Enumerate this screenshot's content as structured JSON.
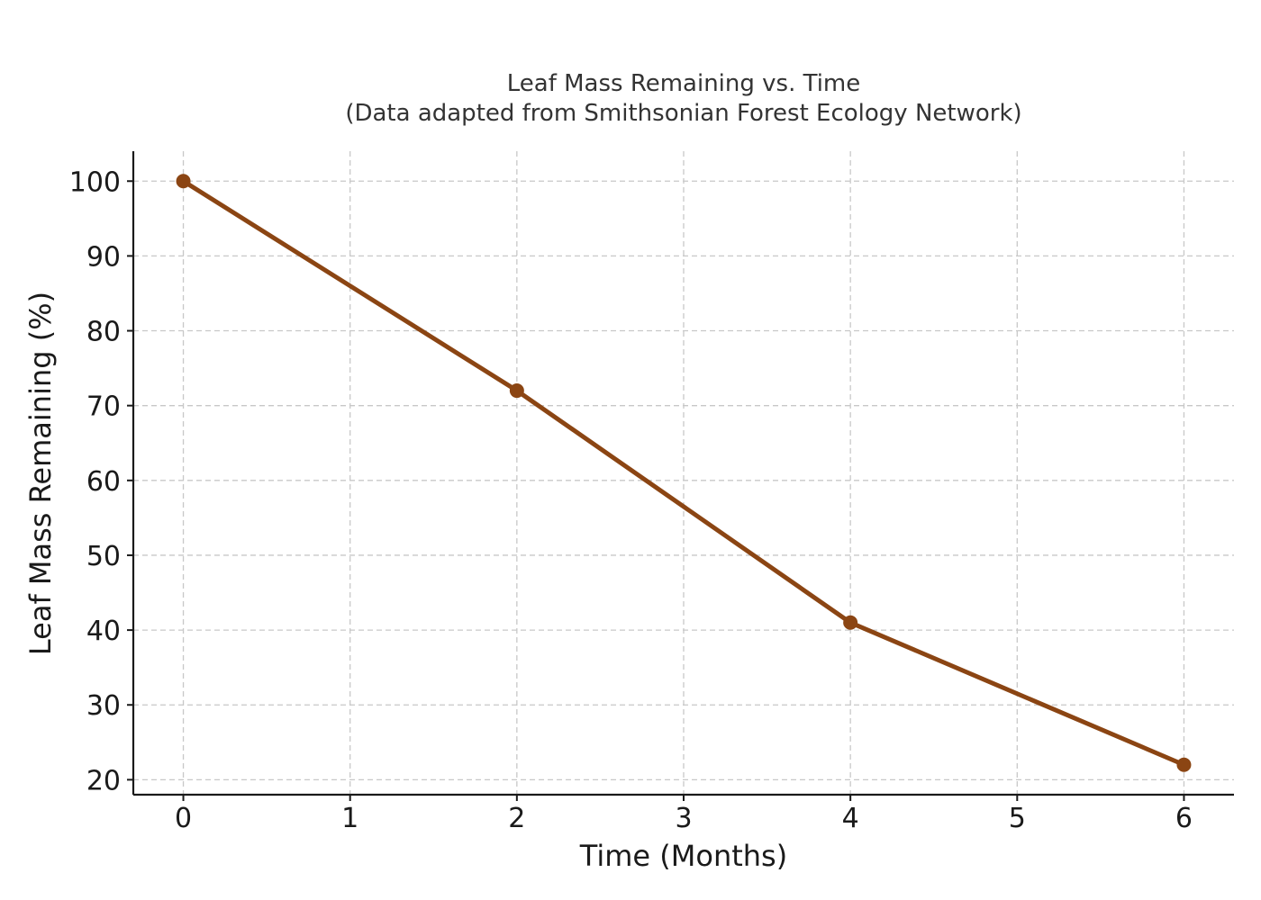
{
  "chart_data": {
    "type": "line",
    "title": "Leaf Mass Remaining vs. Time",
    "subtitle": "(Data adapted from Smithsonian Forest Ecology Network)",
    "xlabel": "Time (Months)",
    "ylabel": "Leaf Mass Remaining (%)",
    "x": [
      0,
      2,
      4,
      6
    ],
    "series": [
      {
        "values": [
          100,
          72,
          41,
          22
        ],
        "color": "#8B4513"
      }
    ],
    "xlim": [
      -0.3,
      6.3
    ],
    "ylim": [
      18,
      104
    ],
    "xticks": [
      0,
      1,
      2,
      3,
      4,
      5,
      6
    ],
    "yticks": [
      20,
      30,
      40,
      50,
      60,
      70,
      80,
      90,
      100
    ],
    "grid": true,
    "grid_color": "#c8c8c8",
    "legend": "none"
  }
}
